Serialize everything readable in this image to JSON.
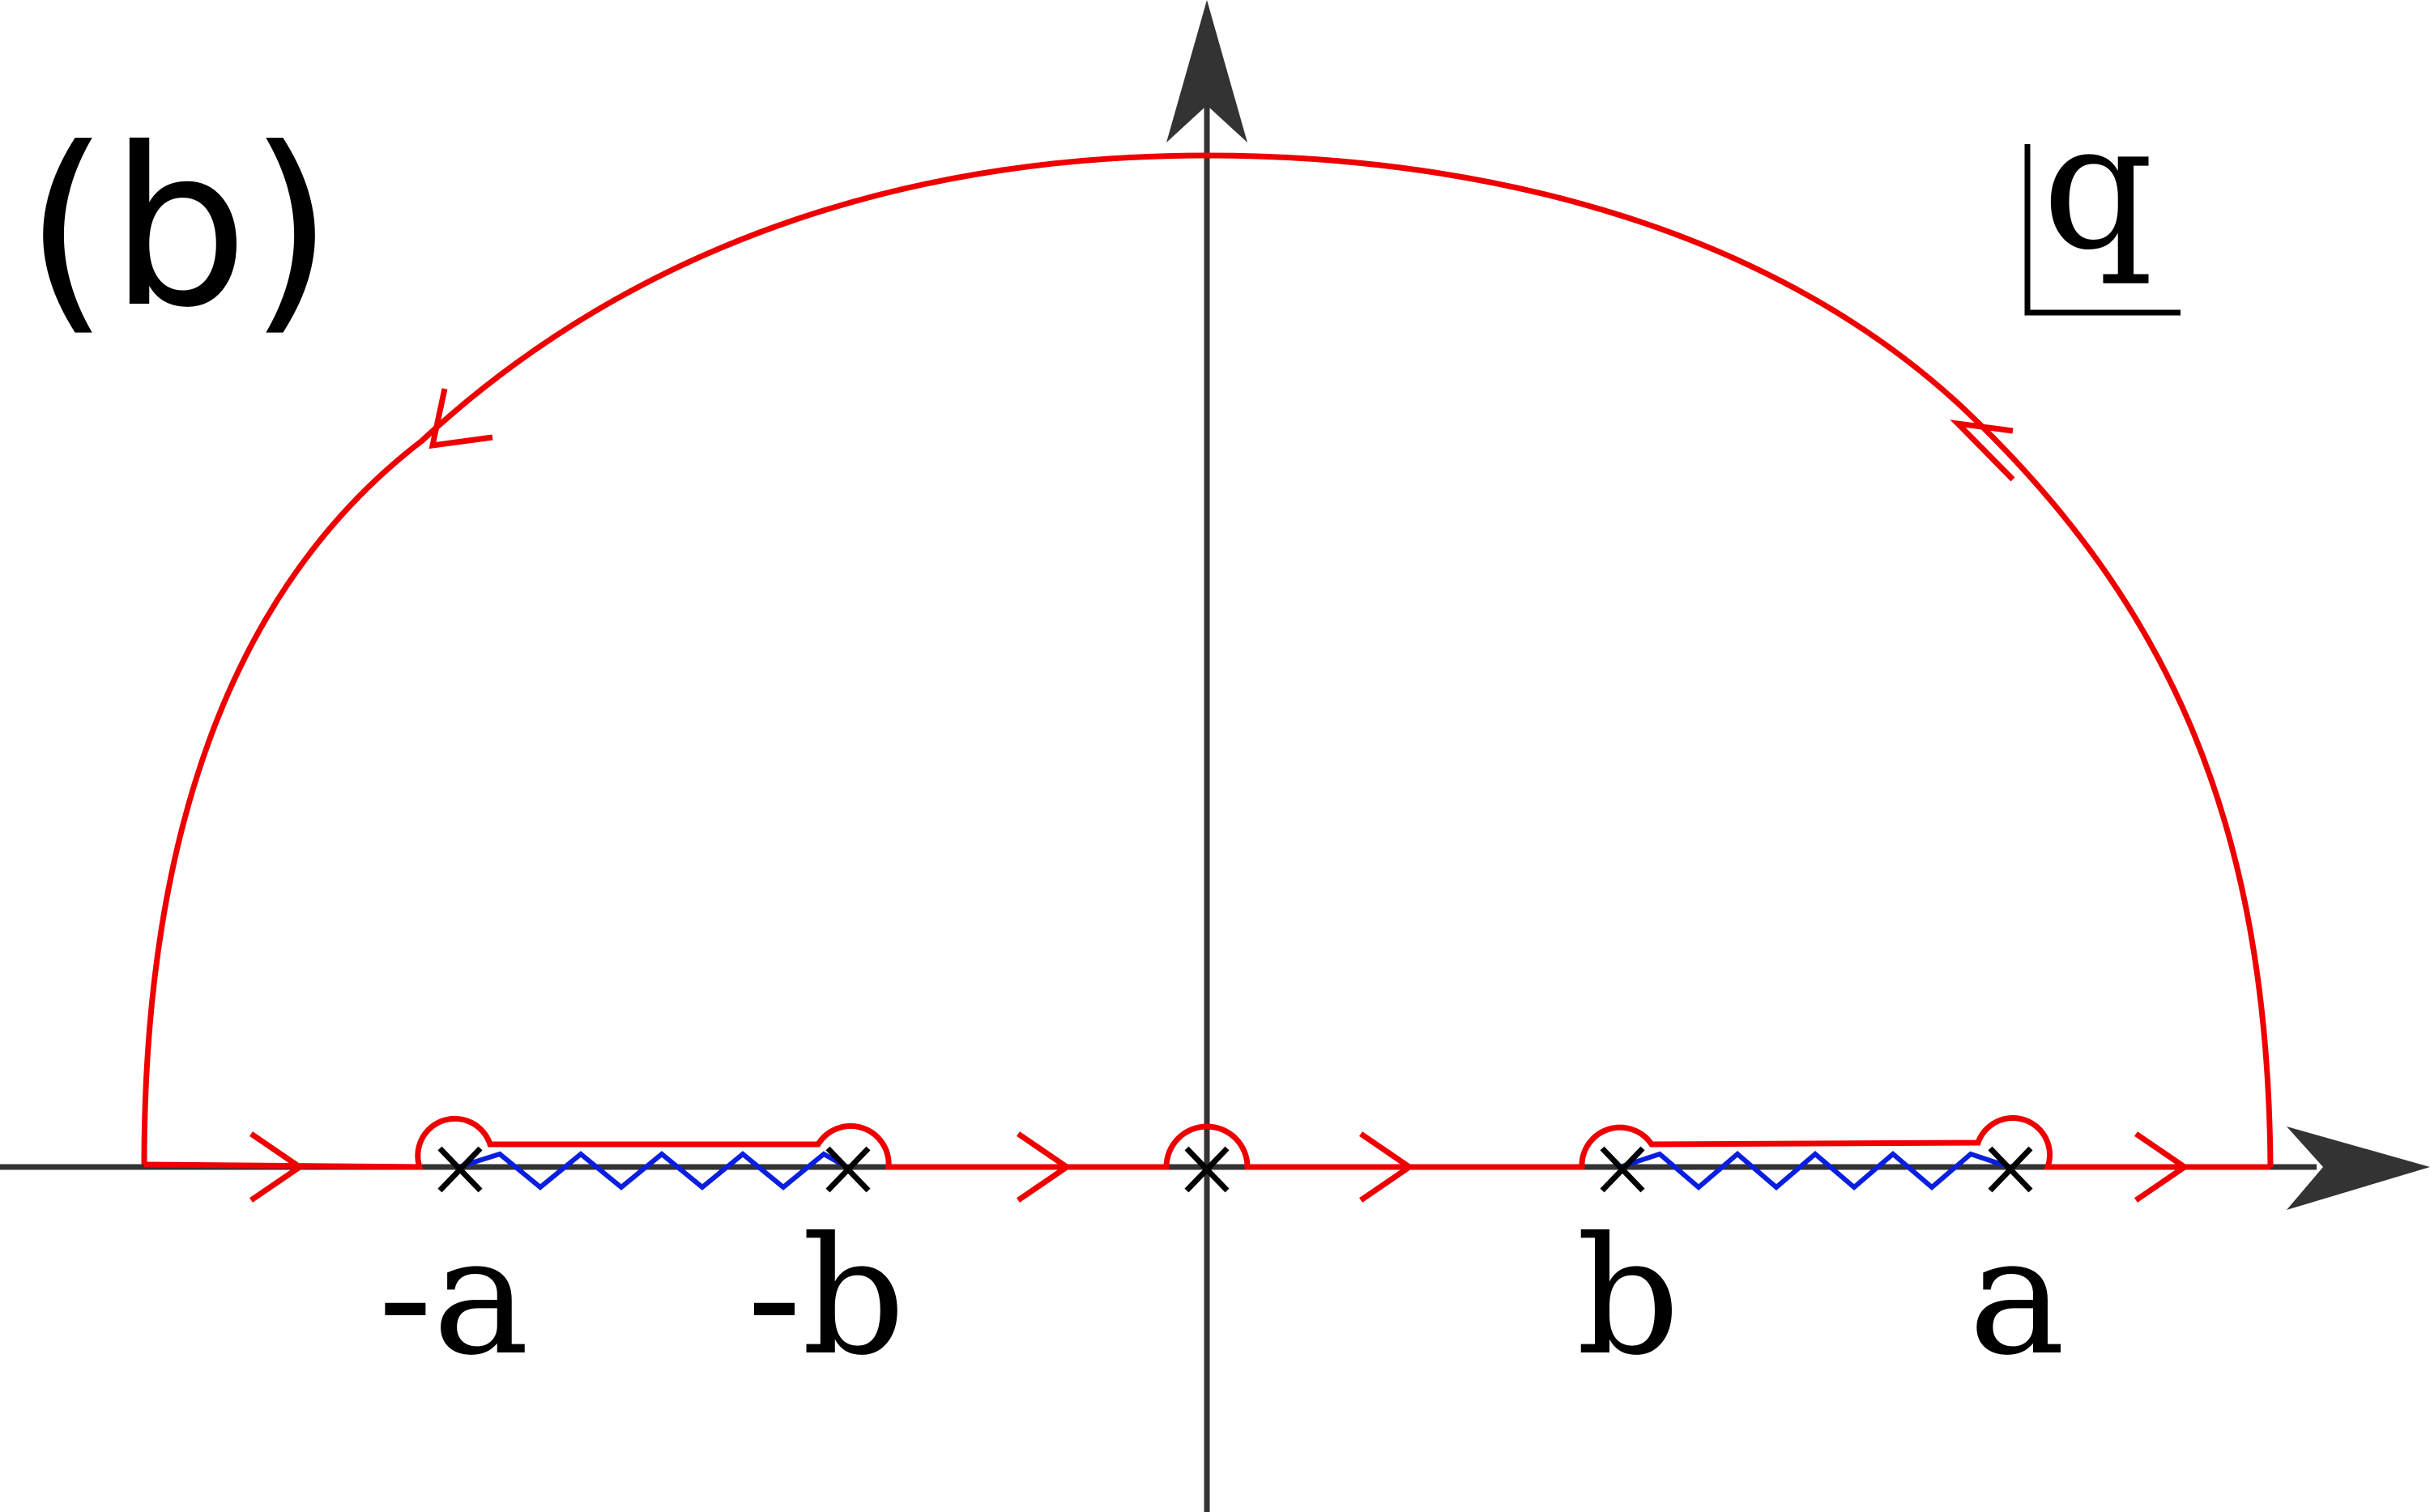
{
  "panel_label": "(b)",
  "plane_label": "q",
  "points": [
    {
      "id": "neg-a",
      "label": "-a"
    },
    {
      "id": "neg-b",
      "label": "-b"
    },
    {
      "id": "origin",
      "label": ""
    },
    {
      "id": "pos-b",
      "label": "b"
    },
    {
      "id": "pos-a",
      "label": "a"
    }
  ],
  "colors": {
    "contour": "#ee0000",
    "branch_cut": "#0a1ee0",
    "axes": "#333333",
    "text": "#000000"
  }
}
